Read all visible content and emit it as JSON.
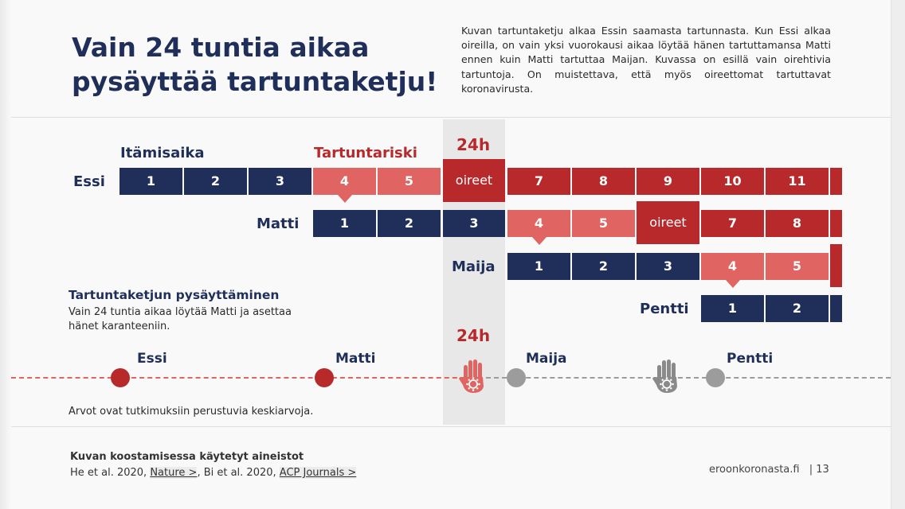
{
  "title_line1": "Vain 24 tuntia aikaa",
  "title_line2": "pysäyttää tartuntaketju!",
  "intro": "Kuvan tartuntaketju alkaa Essin saamasta tartunnasta. Kun Essi alkaa oireilla, on vain yksi vuorokausi aikaa löytää hänen tartuttamansa Matti ennen kuin Matti tartuttaa Maijan. Kuvassa on esillä vain oirehtivia tartuntoja. On muistettava, että myös oireettomat tartuttavat koronavirusta.",
  "headers": {
    "incubation": "Itämisaika",
    "risk": "Tartuntariski",
    "h24_top": "24h",
    "h24_bottom": "24h"
  },
  "people": {
    "essi": "Essi",
    "matti": "Matti",
    "maija": "Maija",
    "pentti": "Pentti"
  },
  "essi_days": [
    "1",
    "2",
    "3",
    "4",
    "5",
    "oireet",
    "7",
    "8",
    "9",
    "10",
    "11"
  ],
  "matti_days": [
    "1",
    "2",
    "3",
    "4",
    "5",
    "oireet",
    "7",
    "8"
  ],
  "maija_days": [
    "1",
    "2",
    "3",
    "4",
    "5"
  ],
  "pentti_days": [
    "1",
    "2"
  ],
  "note": {
    "heading": "Tartuntaketjun pysäyttäminen",
    "body": "Vain 24 tuntia aikaa löytää Matti ja asettaa hänet karanteeniin."
  },
  "timeline": [
    "Essi",
    "Matti",
    "Maija",
    "Pentti"
  ],
  "averages_note": "Arvot ovat tutkimuksiin perustuvia keskiarvoja.",
  "sources": {
    "heading": "Kuvan koostamisessa käytetyt aineistot",
    "part1": "He et al. 2020, ",
    "link1": "Nature >",
    "part2": ",   Bi et al. 2020, ",
    "link2": "ACP Journals >"
  },
  "footer": {
    "site": "eroonkoronasta.fi",
    "page": "|  13"
  },
  "colors": {
    "navy": "#1f2f5a",
    "red": "#b8292b",
    "pink": "#df6462",
    "gray": "#9c9c9c"
  },
  "icons": [
    "hand-stop-icon-red",
    "hand-stop-icon-gray"
  ]
}
